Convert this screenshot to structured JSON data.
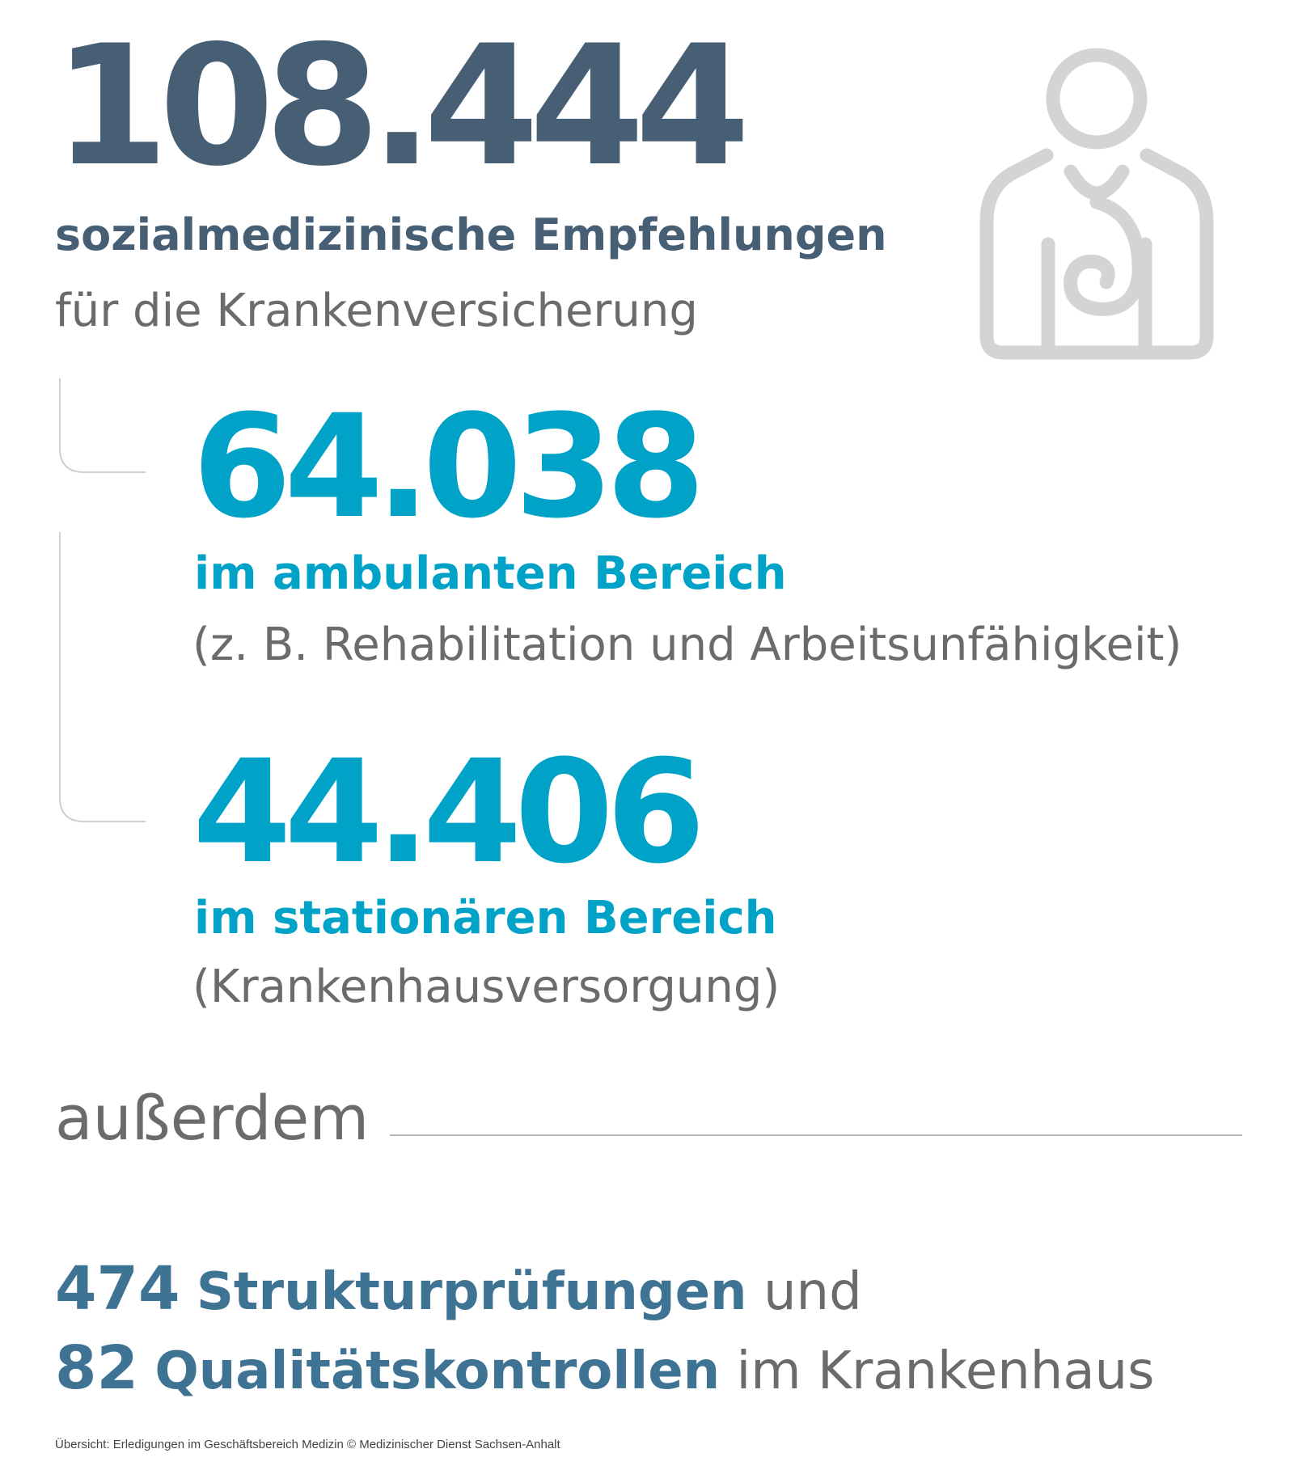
{
  "total": {
    "value": "108.444",
    "title": "sozialmedizinische Empfehlungen",
    "subtitle": "für die Krankenversicherung"
  },
  "ambulant": {
    "value": "64.038",
    "label": "im ambulanten Bereich",
    "note": "(z. B. Rehabilitation und Arbeitsunfähigkeit)"
  },
  "stationaer": {
    "value": "44.406",
    "label": "im stationären Bereich",
    "note": "(Krankenhausversorgung)"
  },
  "extra": {
    "heading": "außerdem",
    "line1": {
      "number": "474",
      "label": "Strukturprüfungen",
      "suffix": "und"
    },
    "line2": {
      "number": "82",
      "label": "Qualitätskontrollen",
      "suffix": "im Krankenhaus"
    }
  },
  "footer": {
    "caption": "Übersicht: Erledigungen im Geschäftsbereich Medizin © Medizinischer Dienst Sachsen-Anhalt"
  },
  "icons": {
    "doctor": "doctor-stethoscope-icon"
  },
  "colors": {
    "dark_blue": "#465f74",
    "accent_blue": "#00a3c7",
    "steel_blue": "#3e7394",
    "grey_text": "#6b6b6b",
    "icon_grey": "#d4d4d4",
    "line_grey": "#b5b5b5"
  }
}
